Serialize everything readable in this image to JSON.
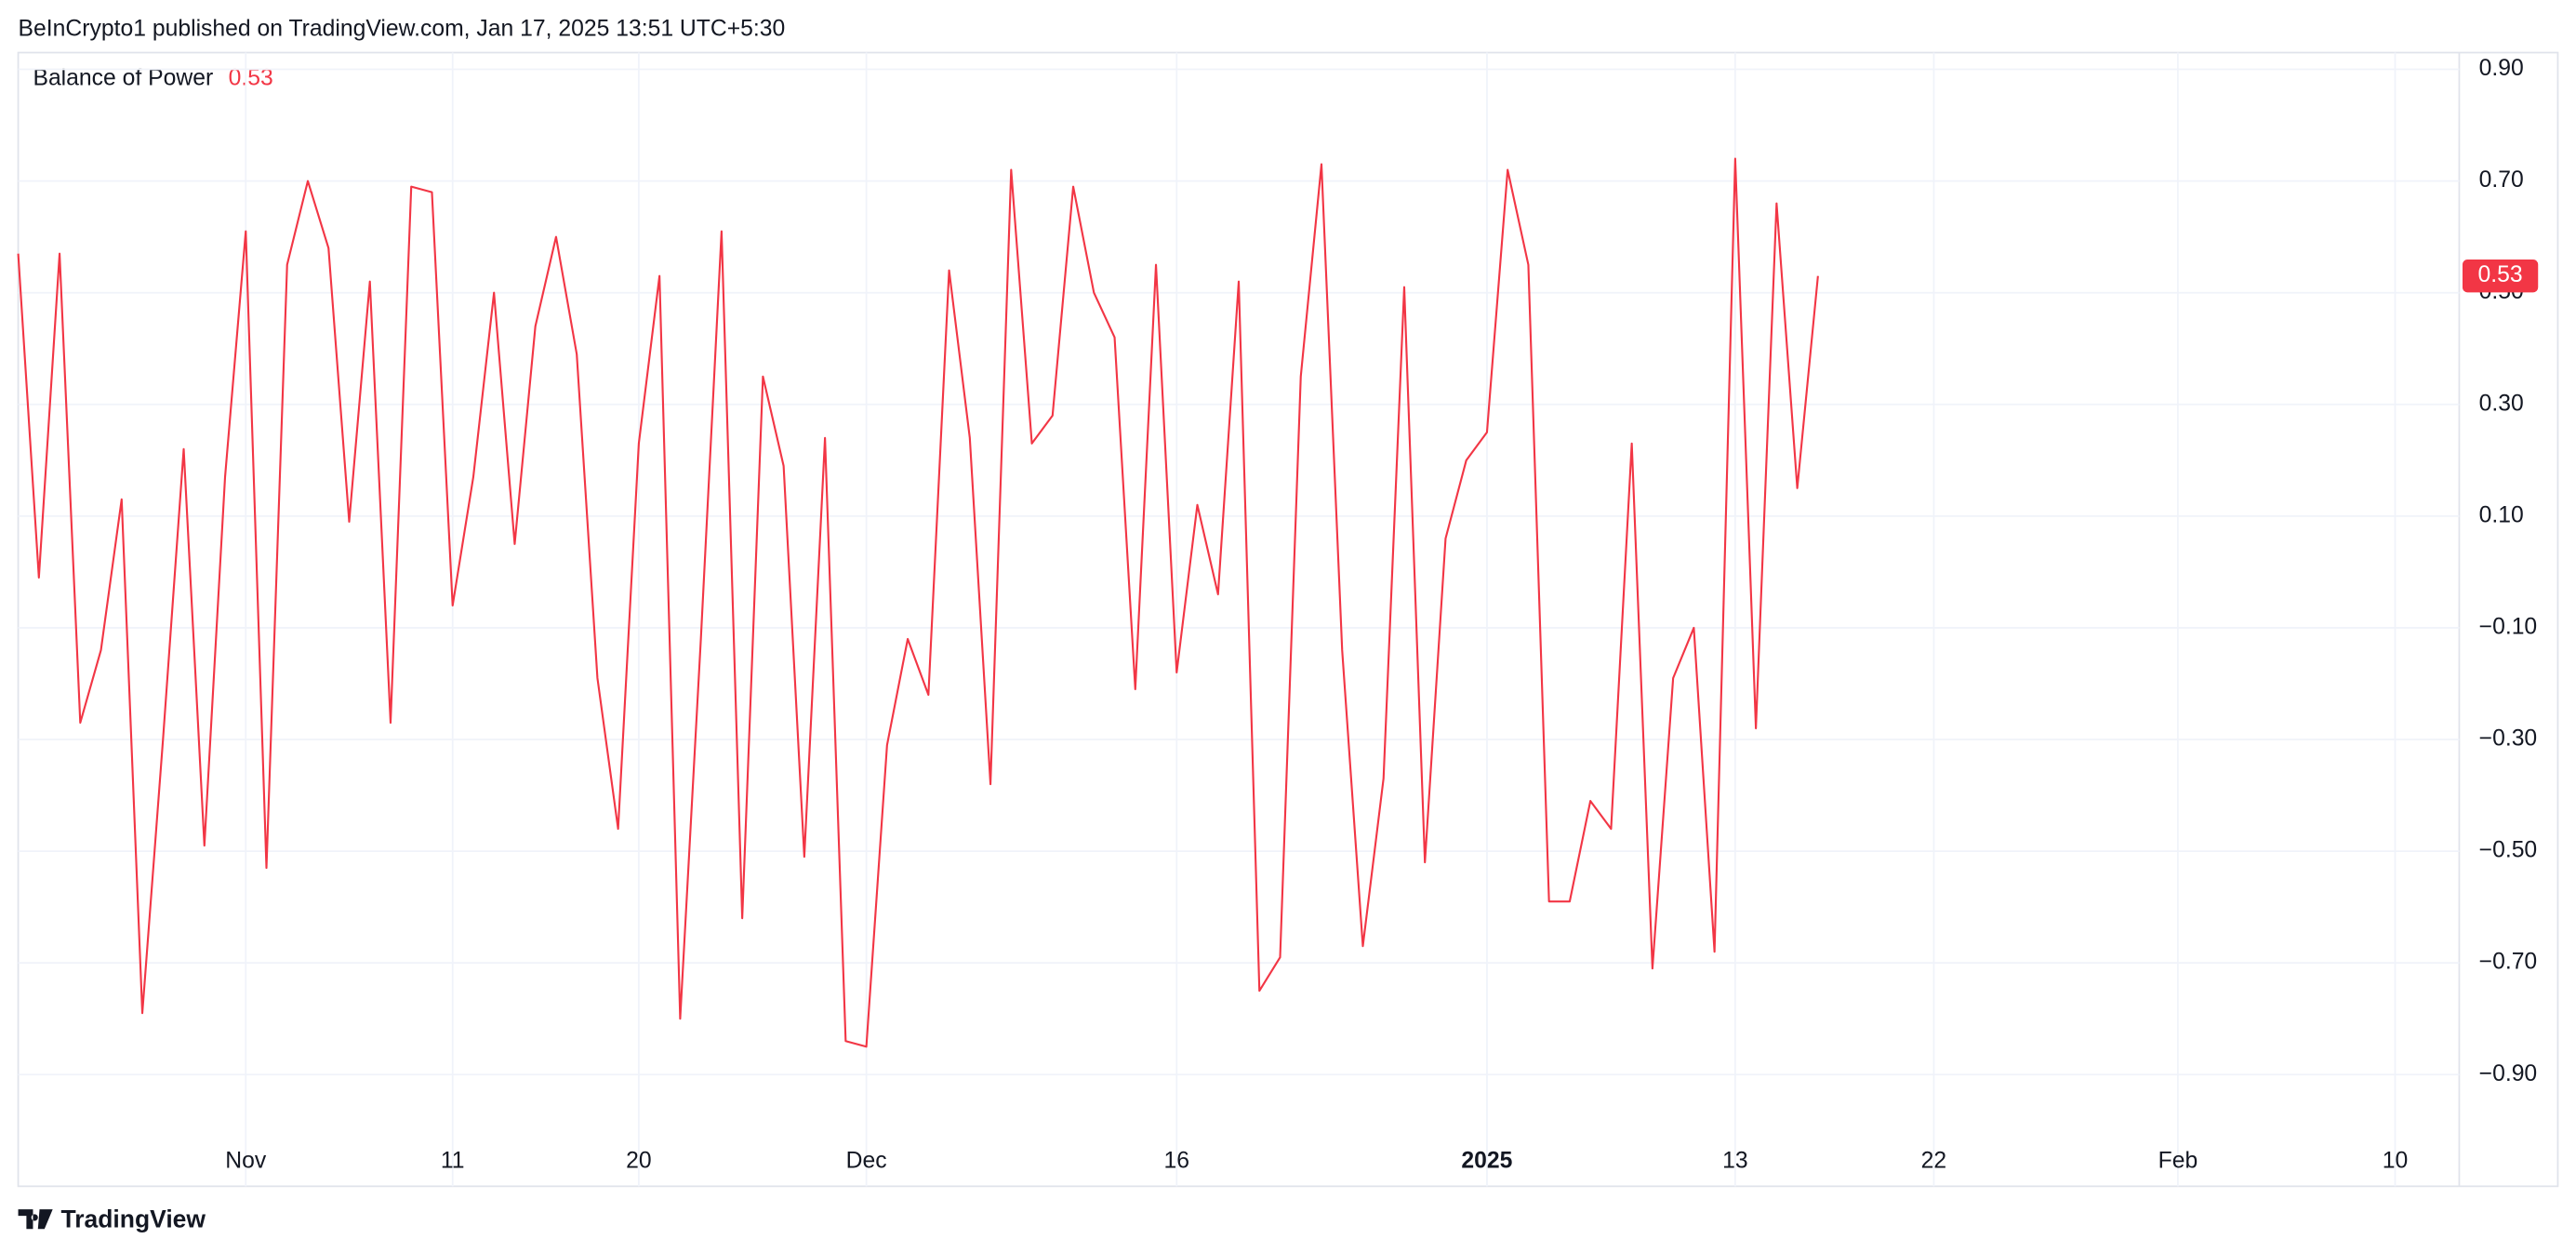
{
  "header": {
    "published": "BeInCrypto1 published on TradingView.com, Jan 17, 2025 13:51 UTC+5:30"
  },
  "footer": {
    "brand": "TradingView"
  },
  "chart_data": {
    "type": "line",
    "title": "Balance of Power",
    "color": "#f23645",
    "grid": true,
    "values": [
      0.57,
      -0.01,
      0.57,
      -0.27,
      -0.14,
      0.13,
      -0.79,
      -0.3,
      0.22,
      -0.49,
      0.17,
      0.61,
      -0.53,
      0.55,
      0.7,
      0.58,
      0.09,
      0.52,
      -0.27,
      0.69,
      0.68,
      -0.06,
      0.17,
      0.5,
      0.05,
      0.44,
      0.6,
      0.39,
      -0.19,
      -0.46,
      0.23,
      0.53,
      -0.8,
      -0.12,
      0.61,
      -0.62,
      0.35,
      0.19,
      -0.51,
      0.24,
      -0.84,
      -0.85,
      -0.31,
      -0.12,
      -0.22,
      0.54,
      0.24,
      -0.38,
      0.72,
      0.23,
      0.28,
      0.69,
      0.5,
      0.42,
      -0.21,
      0.55,
      -0.18,
      0.12,
      -0.04,
      0.52,
      -0.75,
      -0.69,
      0.35,
      0.73,
      -0.14,
      -0.67,
      -0.37,
      0.51,
      -0.52,
      0.06,
      0.2,
      0.25,
      0.72,
      0.55,
      -0.59,
      -0.59,
      -0.41,
      -0.46,
      0.23,
      -0.71,
      -0.19,
      -0.1,
      -0.68,
      0.74,
      -0.28,
      0.66,
      0.15,
      0.53
    ],
    "xlim": [
      0,
      118
    ],
    "xticks": [
      {
        "value": 11,
        "label": "Nov"
      },
      {
        "value": 21,
        "label": "11"
      },
      {
        "value": 30,
        "label": "20"
      },
      {
        "value": 41,
        "label": "Dec"
      },
      {
        "value": 56,
        "label": "16"
      },
      {
        "value": 71,
        "label": "2025"
      },
      {
        "value": 83,
        "label": "13"
      },
      {
        "value": 92.6,
        "label": "22"
      },
      {
        "value": 104.4,
        "label": "Feb"
      },
      {
        "value": 114.9,
        "label": "10"
      }
    ],
    "ylim": [
      -1.1,
      0.93
    ],
    "yticks": [
      {
        "value": 0.9,
        "label": "0.90"
      },
      {
        "value": 0.7,
        "label": "0.70"
      },
      {
        "value": 0.5,
        "label": "0.50"
      },
      {
        "value": 0.3,
        "label": "0.30"
      },
      {
        "value": 0.1,
        "label": "0.10"
      },
      {
        "value": -0.1,
        "label": "−0.10"
      },
      {
        "value": -0.3,
        "label": "−0.30"
      },
      {
        "value": -0.5,
        "label": "−0.50"
      },
      {
        "value": -0.7,
        "label": "−0.70"
      },
      {
        "value": -0.9,
        "label": "−0.90"
      }
    ]
  }
}
